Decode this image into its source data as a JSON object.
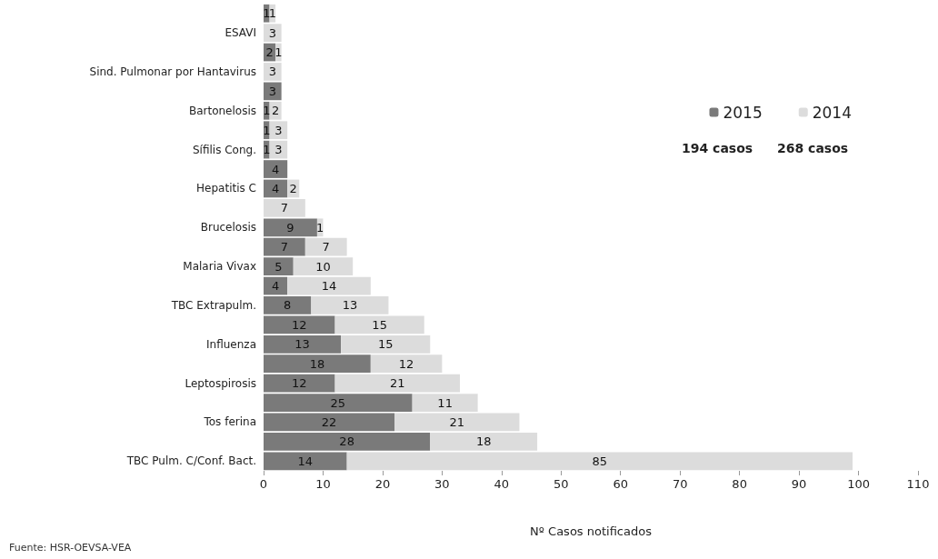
{
  "chart_data": {
    "type": "bar",
    "orientation": "horizontal",
    "stacked": true,
    "categories": [
      null,
      "ESAVI",
      null,
      "Sind. Pulmonar por Hantavirus",
      null,
      "Bartonelosis",
      null,
      "Sífilis Cong.",
      null,
      "Hepatitis C",
      null,
      "Brucelosis",
      null,
      "Malaria Vivax",
      null,
      "TBC Extrapulm.",
      null,
      "Influenza",
      null,
      "Leptospirosis",
      null,
      "Tos ferina",
      null,
      "TBC Pulm. C/Conf. Bact."
    ],
    "series": [
      {
        "name": "2015",
        "color": "#7a7a7a",
        "values": [
          1,
          null,
          2,
          null,
          3,
          1,
          1,
          1,
          4,
          4,
          null,
          9,
          7,
          5,
          4,
          8,
          12,
          13,
          18,
          12,
          25,
          22,
          28,
          14
        ]
      },
      {
        "name": "2014",
        "color": "#dcdcdc",
        "values": [
          1,
          3,
          1,
          3,
          null,
          2,
          3,
          3,
          null,
          2,
          7,
          1,
          7,
          10,
          14,
          13,
          15,
          15,
          12,
          21,
          11,
          21,
          18,
          85
        ]
      }
    ],
    "xlabel": "Nº Casos notificados",
    "xlim": [
      0,
      110
    ],
    "xticks": [
      0,
      10,
      20,
      30,
      40,
      50,
      60,
      70,
      80,
      90,
      100,
      110
    ],
    "data_labels": true,
    "grid": false,
    "legend": "top right",
    "annotations": [
      "194 casos",
      "268 casos",
      "Fuente: HSR-OEVSA-VEA"
    ]
  }
}
